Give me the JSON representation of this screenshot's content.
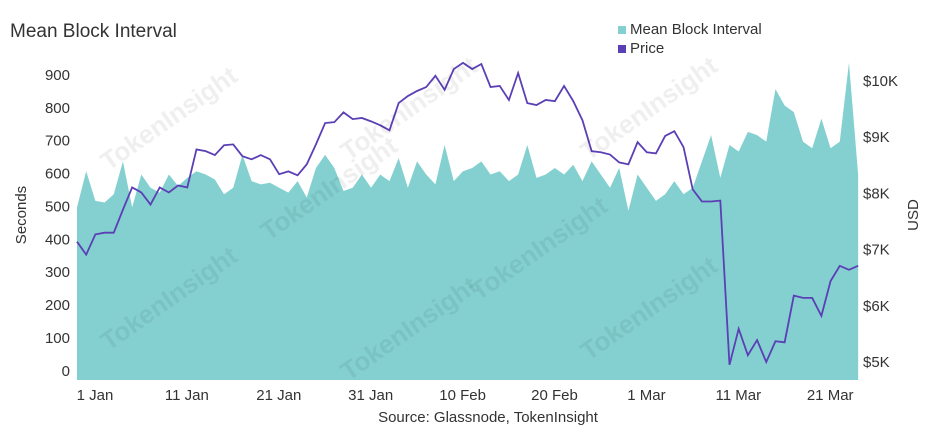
{
  "chart_data": {
    "type": "area-line",
    "title": "Mean Block Interval",
    "watermark": "TokenInsight",
    "source": "Source: Glassnode, TokenInsight",
    "ylabel": "Seconds",
    "y2label": "USD",
    "legend": "top-right",
    "categories": [
      "1 Jan",
      null,
      null,
      null,
      null,
      null,
      null,
      null,
      null,
      null,
      "11 Jan",
      null,
      null,
      null,
      null,
      null,
      null,
      null,
      null,
      null,
      "21 Jan",
      null,
      null,
      null,
      null,
      null,
      null,
      null,
      null,
      null,
      "31 Jan",
      null,
      null,
      null,
      null,
      null,
      null,
      null,
      null,
      null,
      "10 Feb",
      null,
      null,
      null,
      null,
      null,
      null,
      null,
      null,
      null,
      "20 Feb",
      null,
      null,
      null,
      null,
      null,
      null,
      null,
      null,
      null,
      "1 Mar",
      null,
      null,
      null,
      null,
      null,
      null,
      null,
      null,
      null,
      "11 Mar",
      null,
      null,
      null,
      null,
      null,
      null,
      null,
      null,
      null,
      "21 Mar",
      null,
      null,
      null,
      null,
      null
    ],
    "ylim": [
      -25,
      950
    ],
    "yticks": [
      0,
      100,
      200,
      300,
      400,
      500,
      600,
      700,
      800,
      900
    ],
    "y2lim": [
      4700,
      10400
    ],
    "y2ticks": [
      {
        "value": 5000,
        "label": "$5K"
      },
      {
        "value": 6000,
        "label": "$6K"
      },
      {
        "value": 7000,
        "label": "$7K"
      },
      {
        "value": 8000,
        "label": "$8K"
      },
      {
        "value": 9000,
        "label": "$9K"
      },
      {
        "value": 10000,
        "label": "$10K"
      }
    ],
    "series": [
      {
        "name": "Mean Block Interval",
        "kind": "area",
        "color": "#84d0d0",
        "values": [
          500,
          610,
          520,
          515,
          540,
          640,
          500,
          600,
          560,
          545,
          600,
          565,
          590,
          610,
          600,
          585,
          540,
          560,
          660,
          580,
          570,
          575,
          560,
          545,
          580,
          530,
          620,
          660,
          620,
          550,
          560,
          600,
          560,
          600,
          580,
          650,
          560,
          640,
          600,
          570,
          690,
          580,
          610,
          620,
          640,
          600,
          610,
          580,
          600,
          690,
          590,
          600,
          620,
          600,
          630,
          580,
          640,
          600,
          560,
          620,
          490,
          600,
          560,
          520,
          540,
          580,
          540,
          560,
          640,
          720,
          590,
          690,
          670,
          730,
          720,
          700,
          860,
          810,
          790,
          700,
          680,
          770,
          680,
          700,
          940,
          600
        ]
      },
      {
        "name": "Price",
        "kind": "line",
        "axis": "y2",
        "color": "#5b3fb5",
        "values": [
          7160,
          6930,
          7290,
          7320,
          7320,
          7730,
          8125,
          8035,
          7820,
          8125,
          8035,
          8160,
          8125,
          8800,
          8770,
          8700,
          8875,
          8890,
          8680,
          8625,
          8700,
          8625,
          8360,
          8410,
          8340,
          8535,
          8890,
          9270,
          9285,
          9460,
          9340,
          9360,
          9300,
          9230,
          9140,
          9625,
          9750,
          9840,
          9910,
          10110,
          9860,
          10230,
          10340,
          10230,
          10320,
          9910,
          9930,
          9680,
          10160,
          9625,
          9590,
          9680,
          9660,
          9930,
          9660,
          9320,
          8770,
          8750,
          8710,
          8570,
          8535,
          8930,
          8750,
          8730,
          9040,
          9125,
          8840,
          8090,
          7875,
          7875,
          7890,
          4970,
          5610,
          5140,
          5410,
          5020,
          5390,
          5370,
          6200,
          6160,
          6160,
          5840,
          6460,
          6730,
          6660,
          6730
        ]
      }
    ]
  }
}
